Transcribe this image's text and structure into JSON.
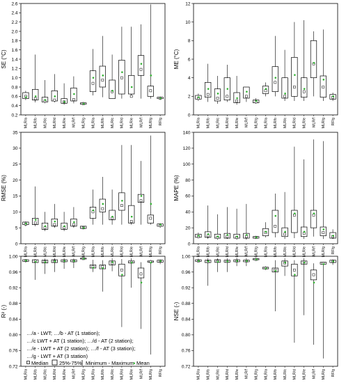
{
  "chart_data": [
    {
      "type": "box",
      "ylabel": "SE (°C)",
      "ylim": [
        0.2,
        2.6
      ],
      "yticks": [
        0.2,
        0.4,
        0.6,
        0.8,
        1.0,
        1.2,
        1.4,
        1.6,
        1.8,
        2.0,
        2.2,
        2.4,
        2.6
      ],
      "categories": [
        "MLR/a",
        "MLR/b",
        "MLR/c",
        "MLR/d",
        "MLR/e",
        "MLR/f",
        "MLR/g",
        "MLR/a",
        "MLR/b",
        "MLR/c",
        "MLR/d",
        "MLR/e",
        "MLR/f",
        "MLR/g",
        "RF/g"
      ],
      "min": [
        0.52,
        0.47,
        0.45,
        0.47,
        0.42,
        0.45,
        0.42,
        0.62,
        0.58,
        0.55,
        0.55,
        0.58,
        0.55,
        0.55,
        0.52
      ],
      "q1": [
        0.55,
        0.52,
        0.48,
        0.5,
        0.45,
        0.5,
        0.43,
        0.7,
        0.8,
        0.55,
        0.65,
        0.65,
        1.05,
        0.6,
        0.55
      ],
      "median": [
        0.6,
        0.55,
        0.5,
        0.52,
        0.48,
        0.53,
        0.44,
        0.88,
        0.95,
        0.7,
        1.0,
        0.6,
        1.18,
        0.72,
        0.56
      ],
      "mean": [
        0.58,
        0.6,
        0.52,
        0.6,
        0.48,
        0.65,
        0.44,
        1.0,
        1.05,
        0.72,
        1.12,
        0.8,
        1.3,
        1.05,
        0.56
      ],
      "q3": [
        0.68,
        0.75,
        0.58,
        0.72,
        0.55,
        0.78,
        0.46,
        1.15,
        1.25,
        0.95,
        1.38,
        1.05,
        1.48,
        0.82,
        0.58
      ],
      "max": [
        0.72,
        1.5,
        0.95,
        1.08,
        0.88,
        1.03,
        0.48,
        1.62,
        1.9,
        1.5,
        2.1,
        2.1,
        2.15,
        2.58,
        0.6
      ]
    },
    {
      "type": "box",
      "ylabel": "ME (°C)",
      "ylim": [
        0,
        12
      ],
      "yticks": [
        0,
        2,
        4,
        6,
        8,
        10,
        12
      ],
      "categories": [
        "MLR/a",
        "MLR/b",
        "MLR/c",
        "MLR/d",
        "MLR/e",
        "MLR/f",
        "MLR/g",
        "MLR/a",
        "MLR/b",
        "MLR/c",
        "MLR/d",
        "MLR/e",
        "MLR/f",
        "MLR/g",
        "RF/g"
      ],
      "min": [
        1.5,
        1.4,
        1.2,
        1.4,
        1.1,
        1.4,
        1.2,
        2.0,
        2.0,
        1.5,
        1.5,
        1.5,
        2.0,
        1.5,
        1.5
      ],
      "q1": [
        1.7,
        1.9,
        1.5,
        1.6,
        1.3,
        1.8,
        1.3,
        2.3,
        2.5,
        1.8,
        2.0,
        1.9,
        4.0,
        1.9,
        1.7
      ],
      "median": [
        1.8,
        2.2,
        1.8,
        2.0,
        1.5,
        2.0,
        1.4,
        2.6,
        3.5,
        2.0,
        3.0,
        2.5,
        5.5,
        3.0,
        1.9
      ],
      "mean": [
        1.9,
        2.8,
        2.3,
        2.8,
        1.8,
        2.5,
        1.5,
        2.8,
        4.0,
        2.3,
        4.3,
        2.8,
        5.6,
        3.8,
        2.0
      ],
      "q3": [
        2.1,
        3.5,
        2.8,
        4.0,
        2.4,
        3.0,
        1.6,
        3.1,
        5.2,
        4.0,
        6.2,
        4.0,
        8.0,
        4.2,
        2.2
      ],
      "max": [
        2.3,
        5.5,
        4.2,
        5.4,
        4.2,
        3.0,
        1.8,
        3.5,
        8.5,
        7.0,
        10.0,
        10.2,
        9.0,
        9.2,
        2.4
      ]
    },
    {
      "type": "box",
      "ylabel": "RMSE (%)",
      "ylim": [
        0,
        35
      ],
      "yticks": [
        0,
        5,
        10,
        15,
        20,
        25,
        30,
        35
      ],
      "categories": [
        "MLR/a",
        "MLR/b",
        "MLR/c",
        "MLR/d",
        "MLR/e",
        "MLR/f",
        "MLR/g",
        "MLR/a",
        "MLR/b",
        "MLR/c",
        "MLR/d",
        "MLR/e",
        "MLR/f",
        "MLR/g",
        "RF/g"
      ],
      "min": [
        5.5,
        5.5,
        4.0,
        5.0,
        4.0,
        5.0,
        4.5,
        6.0,
        6.0,
        6.0,
        6.0,
        6.0,
        6.0,
        6.0,
        5.0
      ],
      "q1": [
        6.0,
        6.0,
        4.5,
        5.5,
        4.5,
        5.5,
        4.8,
        8.0,
        10.0,
        7.5,
        10.5,
        6.5,
        13.0,
        6.5,
        5.5
      ],
      "median": [
        6.2,
        6.5,
        5.0,
        6.0,
        5.0,
        6.0,
        5.0,
        10.0,
        11.0,
        8.0,
        12.0,
        7.0,
        13.5,
        8.0,
        5.8
      ],
      "mean": [
        6.3,
        7.5,
        5.5,
        7.0,
        5.5,
        6.8,
        5.0,
        10.5,
        12.5,
        8.5,
        13.5,
        8.5,
        15.0,
        12.5,
        6.0
      ],
      "q3": [
        6.8,
        8.0,
        6.5,
        7.8,
        6.5,
        7.8,
        5.5,
        11.5,
        14.0,
        10.5,
        16.0,
        12.0,
        15.5,
        9.0,
        6.2
      ],
      "max": [
        7.0,
        18.0,
        10.0,
        12.5,
        10.0,
        11.5,
        5.5,
        17.0,
        21.0,
        17.0,
        31.0,
        31.0,
        26.0,
        34.0,
        6.5
      ]
    },
    {
      "type": "box",
      "ylabel": "MAPE (%)",
      "ylim": [
        0,
        140
      ],
      "yticks": [
        0,
        20,
        40,
        60,
        80,
        100,
        120,
        140
      ],
      "categories": [
        "MLR/a",
        "MLR/b",
        "MLR/c",
        "MLR/d",
        "MLR/e",
        "MLR/f",
        "MLR/g",
        "MLR/a",
        "MLR/b",
        "MLR/c",
        "MLR/d",
        "MLR/e",
        "MLR/f",
        "MLR/g",
        "RF/g"
      ],
      "min": [
        7,
        6,
        5,
        6,
        5,
        5,
        6,
        8,
        8,
        6,
        7,
        6,
        9,
        6,
        6
      ],
      "q1": [
        8,
        8,
        7,
        7,
        7,
        7,
        7,
        10,
        14,
        9,
        14,
        9,
        20,
        10,
        7
      ],
      "median": [
        9,
        10,
        8,
        9,
        8,
        9,
        8,
        14,
        22,
        12,
        36,
        13,
        36,
        14,
        9
      ],
      "mean": [
        10,
        12,
        9,
        11,
        9,
        11,
        8,
        15,
        35,
        15,
        38,
        15,
        38,
        18,
        10
      ],
      "q3": [
        12,
        15,
        12,
        13,
        12,
        13,
        9,
        19,
        42,
        20,
        42,
        21,
        42,
        21,
        14
      ],
      "max": [
        14,
        48,
        37,
        46,
        44,
        50,
        10,
        27,
        63,
        65,
        122,
        106,
        131,
        129,
        18
      ]
    },
    {
      "type": "box",
      "ylabel": "R² (-)",
      "ylim": [
        0.72,
        1.0
      ],
      "yticks": [
        0.72,
        0.76,
        0.8,
        0.84,
        0.88,
        0.92,
        0.96,
        1.0
      ],
      "categories": [
        "MLR/a",
        "MLR/b",
        "MLR/c",
        "MLR/d",
        "MLR/e",
        "MLR/f",
        "MLR/g",
        "MLR/a",
        "MLR/b",
        "MLR/c",
        "MLR/d",
        "MLR/e",
        "MLR/f",
        "MLR/g",
        "RF/g"
      ],
      "min": [
        0.984,
        0.94,
        0.955,
        0.96,
        0.968,
        0.97,
        0.992,
        0.96,
        0.91,
        0.962,
        0.82,
        0.92,
        0.815,
        0.75,
        0.98
      ],
      "q1": [
        0.987,
        0.984,
        0.983,
        0.984,
        0.986,
        0.986,
        0.993,
        0.97,
        0.968,
        0.978,
        0.95,
        0.983,
        0.945,
        0.985,
        0.985
      ],
      "median": [
        0.989,
        0.988,
        0.986,
        0.987,
        0.988,
        0.988,
        0.994,
        0.973,
        0.973,
        0.983,
        0.965,
        0.985,
        0.955,
        0.986,
        0.988
      ],
      "mean": [
        0.989,
        0.986,
        0.985,
        0.987,
        0.988,
        0.988,
        0.994,
        0.971,
        0.97,
        0.985,
        0.953,
        0.984,
        0.933,
        0.984,
        0.988
      ],
      "q3": [
        0.991,
        0.991,
        0.99,
        0.991,
        0.991,
        0.991,
        0.995,
        0.978,
        0.978,
        0.988,
        0.98,
        0.988,
        0.97,
        0.988,
        0.99
      ],
      "max": [
        0.993,
        0.993,
        0.994,
        0.995,
        0.995,
        0.994,
        0.997,
        0.991,
        0.99,
        0.995,
        0.993,
        0.995,
        0.985,
        0.991,
        0.992
      ]
    },
    {
      "type": "box",
      "ylabel": "NSE (-)",
      "ylim": [
        0.72,
        1.0
      ],
      "yticks": [
        0.72,
        0.76,
        0.8,
        0.84,
        0.88,
        0.92,
        0.96,
        1.0
      ],
      "categories": [
        "MLR/a",
        "MLR/b",
        "MLR/c",
        "MLR/d",
        "MLR/e",
        "MLR/f",
        "MLR/g",
        "MLR/a",
        "MLR/b",
        "MLR/c",
        "MLR/d",
        "MLR/e",
        "MLR/f",
        "MLR/g",
        "RF/g"
      ],
      "min": [
        0.985,
        0.925,
        0.96,
        0.96,
        0.975,
        0.975,
        0.99,
        0.965,
        0.86,
        0.95,
        0.78,
        0.85,
        0.775,
        0.74,
        0.978
      ],
      "q1": [
        0.987,
        0.984,
        0.985,
        0.985,
        0.986,
        0.986,
        0.991,
        0.968,
        0.96,
        0.975,
        0.95,
        0.98,
        0.94,
        0.98,
        0.984
      ],
      "median": [
        0.988,
        0.986,
        0.987,
        0.987,
        0.988,
        0.988,
        0.992,
        0.97,
        0.965,
        0.983,
        0.965,
        0.985,
        0.953,
        0.982,
        0.987
      ],
      "mean": [
        0.988,
        0.987,
        0.986,
        0.987,
        0.988,
        0.988,
        0.992,
        0.969,
        0.963,
        0.984,
        0.953,
        0.984,
        0.933,
        0.98,
        0.987
      ],
      "q3": [
        0.991,
        0.99,
        0.991,
        0.99,
        0.991,
        0.99,
        0.994,
        0.972,
        0.97,
        0.988,
        0.98,
        0.988,
        0.965,
        0.985,
        0.99
      ],
      "max": [
        0.994,
        0.995,
        0.995,
        0.995,
        0.996,
        0.995,
        0.996,
        0.975,
        0.99,
        0.995,
        0.99,
        0.995,
        0.982,
        0.985,
        0.992
      ]
    }
  ],
  "legend": {
    "lines": [
      "…/a - LWT; …/b - AT (1 station);",
      "…/c LWT + AT (1 station); …/d - AT (2 station);",
      "…/e - LWT + AT (2 station); …/f - AT (3 station);",
      "…/g - LWT + AT (3 station)"
    ],
    "median": "Median",
    "iqr": "25%-75%",
    "range": "Minimum - Maximum",
    "mean": "Mean"
  },
  "colors": {
    "box": "#000000",
    "median_marker": "#000000",
    "mean_marker": "#33b233",
    "background": "#ffffff"
  }
}
